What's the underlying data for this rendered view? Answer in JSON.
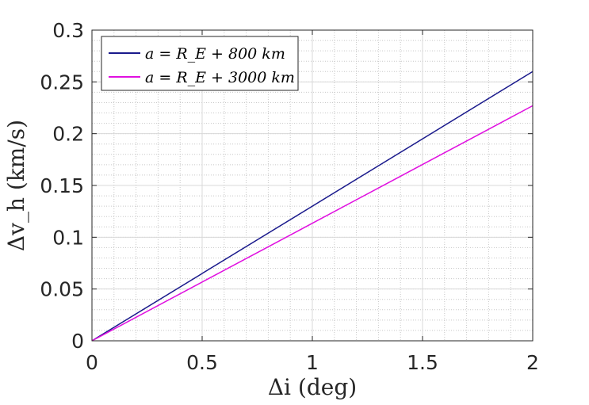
{
  "chart_data": {
    "type": "line",
    "title": "",
    "xlabel": "Δi (deg)",
    "ylabel": "Δv_h (km/s)",
    "xlim": [
      0,
      2
    ],
    "ylim": [
      0,
      0.3
    ],
    "xticks": [
      "0",
      "0.5",
      "1",
      "1.5",
      "2"
    ],
    "xtick_values": [
      0,
      0.5,
      1,
      1.5,
      2
    ],
    "yticks": [
      "0",
      "0.05",
      "0.1",
      "0.15",
      "0.2",
      "0.25",
      "0.3"
    ],
    "ytick_values": [
      0,
      0.05,
      0.1,
      0.15,
      0.2,
      0.25,
      0.3
    ],
    "grid": true,
    "minor_grid": true,
    "legend_position": "top-left",
    "series": [
      {
        "name": "a = R_E + 800 km",
        "color": "#1a1a8c",
        "x": [
          0,
          2
        ],
        "values": [
          0,
          0.26
        ]
      },
      {
        "name": "a = R_E + 3000 km",
        "color": "#e010e0",
        "x": [
          0,
          2
        ],
        "values": [
          0,
          0.227
        ]
      }
    ]
  }
}
